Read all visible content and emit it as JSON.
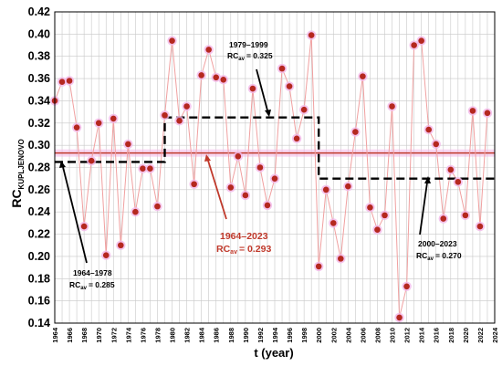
{
  "chart_data": {
    "type": "line",
    "ylabel_main": "RC",
    "ylabel_sub": "KUPLJENOVO",
    "xlabel": "t (year)",
    "ylim": [
      0.14,
      0.42
    ],
    "yticks": [
      "0.14",
      "0.16",
      "0.18",
      "0.20",
      "0.22",
      "0.24",
      "0.26",
      "0.28",
      "0.30",
      "0.32",
      "0.34",
      "0.36",
      "0.38",
      "0.40",
      "0.42"
    ],
    "xlim": [
      1964,
      2024
    ],
    "xticks": [
      "1964",
      "1966",
      "1968",
      "1970",
      "1972",
      "1974",
      "1976",
      "1978",
      "1980",
      "1982",
      "1984",
      "1986",
      "1988",
      "1990",
      "1992",
      "1994",
      "1996",
      "1998",
      "2000",
      "2002",
      "2004",
      "2006",
      "2008",
      "2010",
      "2012",
      "2014",
      "2016",
      "2018",
      "2020",
      "2022",
      "2024"
    ],
    "grid": true,
    "series": [
      {
        "x": [
          1964,
          1965,
          1966,
          1967,
          1968,
          1969,
          1970,
          1971,
          1972,
          1973,
          1974,
          1975,
          1976,
          1977,
          1978,
          1979,
          1980,
          1981,
          1982,
          1983,
          1984,
          1985,
          1986,
          1987,
          1988,
          1989,
          1990,
          1991,
          1992,
          1993,
          1994,
          1995,
          1996,
          1997,
          1998,
          1999,
          2000,
          2001,
          2002,
          2003,
          2004,
          2005,
          2006,
          2007,
          2008,
          2009,
          2010,
          2011,
          2012,
          2013,
          2014,
          2015,
          2016,
          2017,
          2018,
          2019,
          2020,
          2021,
          2022,
          2023
        ],
        "values": [
          0.34,
          0.357,
          0.358,
          0.316,
          0.227,
          0.286,
          0.32,
          0.201,
          0.324,
          0.21,
          0.301,
          0.24,
          0.279,
          0.279,
          0.245,
          0.327,
          0.394,
          0.322,
          0.335,
          0.265,
          0.363,
          0.386,
          0.361,
          0.359,
          0.262,
          0.29,
          0.255,
          0.351,
          0.28,
          0.246,
          0.27,
          0.369,
          0.353,
          0.306,
          0.332,
          0.399,
          0.191,
          0.26,
          0.23,
          0.198,
          0.263,
          0.312,
          0.362,
          0.244,
          0.224,
          0.237,
          0.335,
          0.145,
          0.173,
          0.39,
          0.394,
          0.314,
          0.301,
          0.234,
          0.278,
          0.267,
          0.237,
          0.331,
          0.227,
          0.329
        ]
      }
    ],
    "mean_line": {
      "value": 0.293,
      "color": "#c0392b"
    },
    "period_means": [
      {
        "start": 1964,
        "end": 1979,
        "value": 0.285
      },
      {
        "start": 1979,
        "end": 2000,
        "value": 0.325
      },
      {
        "start": 2000,
        "end": 2024,
        "value": 0.27
      }
    ],
    "annotations": [
      {
        "period": "1964–1978",
        "label": "RC",
        "sub": "av",
        "value_text": "= 0.285",
        "color": "#000000"
      },
      {
        "period": "1979–1999",
        "label": "RC",
        "sub": "av",
        "value_text": "= 0.325",
        "color": "#000000"
      },
      {
        "period": "2000–2023",
        "label": "RC",
        "sub": "av",
        "value_text": "= 0.270",
        "color": "#000000"
      },
      {
        "period": "1964–2023",
        "label": "RC",
        "sub": "av",
        "value_text": "= 0.293",
        "color": "#c0392b"
      }
    ],
    "colors": {
      "point_fill": "#b5281f",
      "point_halo": "#f2b6e8",
      "series_line": "#f0a0a0",
      "grid": "#c8c8c8",
      "period_line": "#000000"
    }
  }
}
